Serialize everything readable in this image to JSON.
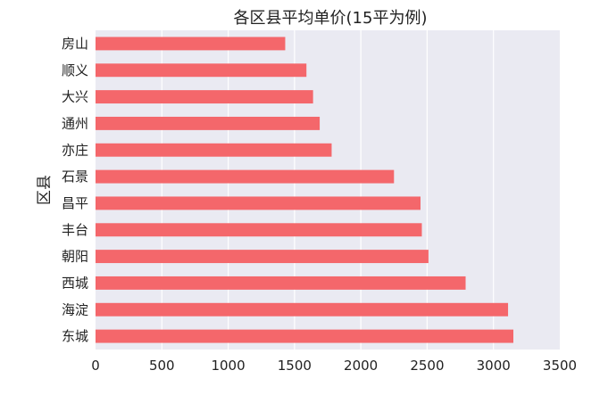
{
  "chart_data": {
    "type": "bar",
    "orientation": "horizontal",
    "title": "各区县平均单价(15平为例)",
    "xlabel": "",
    "ylabel": "区县",
    "categories": [
      "房山",
      "顺义",
      "大兴",
      "通州",
      "亦庄",
      "石景",
      "昌平",
      "丰台",
      "朝阳",
      "西城",
      "海淀",
      "东城"
    ],
    "values": [
      1430,
      1590,
      1640,
      1690,
      1780,
      2250,
      2450,
      2460,
      2510,
      2790,
      3110,
      3150
    ],
    "xlim": [
      0,
      3500
    ],
    "xticks": [
      0,
      500,
      1000,
      1500,
      2000,
      2500,
      3000,
      3500
    ],
    "grid": true,
    "bar_color": "#f4676b",
    "plot_background": "#eaeaf2"
  }
}
